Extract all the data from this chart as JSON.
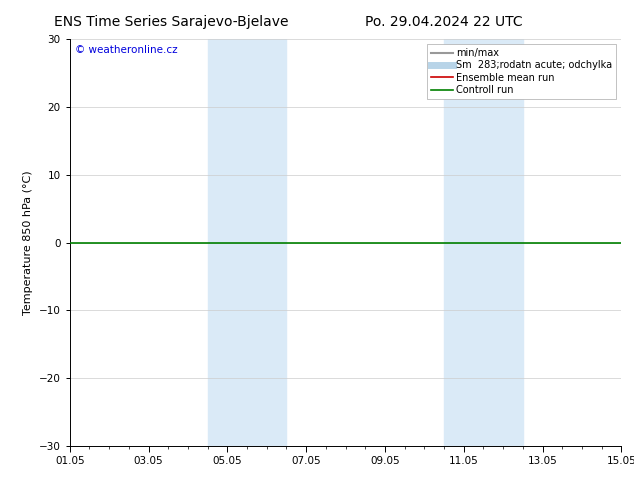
{
  "title_left": "ENS Time Series Sarajevo-Bjelave",
  "title_right": "Po. 29.04.2024 22 UTC",
  "ylabel": "Temperature 850 hPa (°C)",
  "ylim": [
    -30,
    30
  ],
  "yticks": [
    -30,
    -20,
    -10,
    0,
    10,
    20,
    30
  ],
  "xtick_labels": [
    "01.05",
    "03.05",
    "05.05",
    "07.05",
    "09.05",
    "11.05",
    "13.05",
    "15.05"
  ],
  "xtick_positions": [
    0,
    2,
    4,
    6,
    8,
    10,
    12,
    14
  ],
  "xlim": [
    0,
    14
  ],
  "watermark": "© weatheronline.cz",
  "watermark_color": "#0000dd",
  "bg_color": "#ffffff",
  "plot_bg_color": "#ffffff",
  "shaded_bands": [
    {
      "x_start": 3.5,
      "x_end": 5.5,
      "color": "#daeaf7"
    },
    {
      "x_start": 9.5,
      "x_end": 11.5,
      "color": "#daeaf7"
    }
  ],
  "hline_y": 0,
  "hline_color": "#008000",
  "hline_lw": 1.2,
  "legend_items": [
    {
      "label": "min/max",
      "color": "#999999",
      "lw": 1.5,
      "style": "solid"
    },
    {
      "label": "Sm  283;rodatn acute; odchylka",
      "color": "#b8d4e8",
      "lw": 5,
      "style": "solid"
    },
    {
      "label": "Ensemble mean run",
      "color": "#cc0000",
      "lw": 1.2,
      "style": "solid"
    },
    {
      "label": "Controll run",
      "color": "#008000",
      "lw": 1.2,
      "style": "solid"
    }
  ],
  "grid_color": "#cccccc",
  "grid_lw": 0.5,
  "title_fontsize": 10,
  "tick_fontsize": 7.5,
  "ylabel_fontsize": 8,
  "watermark_fontsize": 7.5,
  "legend_fontsize": 7
}
